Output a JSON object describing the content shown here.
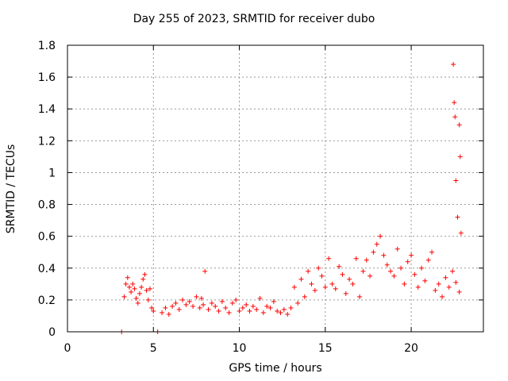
{
  "chart_data": {
    "type": "scatter",
    "title": "Day 255 of 2023, SRMTID for receiver dubo",
    "xlabel": "GPS time / hours",
    "ylabel": "SRMTID / TECUs",
    "xlim": [
      0,
      24.2
    ],
    "ylim": [
      0,
      1.8
    ],
    "xticks": [
      0,
      5,
      10,
      15,
      20
    ],
    "yticks": [
      0,
      0.2,
      0.4,
      0.6,
      0.8,
      1,
      1.2,
      1.4,
      1.6,
      1.8
    ],
    "ytick_labels": [
      "0",
      "0.2",
      "0.4",
      "0.6",
      "0.8",
      "1",
      "1.2",
      "1.4",
      "1.6",
      "1.8"
    ],
    "grid": true,
    "marker": "+",
    "color": "#ff0000",
    "series": [
      {
        "name": "SRMTID",
        "x": [
          3.15,
          5.25,
          3.3,
          3.4,
          3.5,
          3.6,
          3.7,
          3.8,
          3.9,
          4.0,
          4.1,
          4.2,
          4.3,
          4.4,
          4.5,
          4.6,
          4.7,
          4.8,
          4.9,
          5.0,
          5.5,
          5.7,
          5.9,
          6.1,
          6.3,
          6.5,
          6.7,
          6.9,
          7.1,
          7.3,
          7.5,
          7.7,
          7.8,
          7.9,
          8.0,
          8.2,
          8.4,
          8.6,
          8.8,
          9.0,
          9.2,
          9.4,
          9.6,
          9.8,
          10.0,
          10.2,
          10.4,
          10.6,
          10.8,
          11.0,
          11.2,
          11.4,
          11.6,
          11.8,
          12.0,
          12.2,
          12.4,
          12.6,
          12.8,
          13.0,
          13.2,
          13.4,
          13.6,
          13.8,
          14.0,
          14.2,
          14.4,
          14.6,
          14.8,
          15.0,
          15.2,
          15.4,
          15.6,
          15.8,
          16.0,
          16.2,
          16.4,
          16.6,
          16.8,
          17.0,
          17.2,
          17.4,
          17.6,
          17.8,
          18.0,
          18.2,
          18.4,
          18.6,
          18.8,
          19.0,
          19.2,
          19.4,
          19.6,
          19.8,
          20.0,
          20.2,
          20.4,
          20.6,
          20.8,
          21.0,
          21.2,
          21.4,
          21.6,
          21.8,
          22.0,
          22.2,
          22.4,
          22.6,
          22.8,
          22.45,
          22.5,
          22.55,
          22.6,
          22.7,
          22.8,
          22.85,
          22.9
        ],
        "y": [
          0.0,
          0.0,
          0.22,
          0.3,
          0.34,
          0.28,
          0.25,
          0.3,
          0.27,
          0.21,
          0.18,
          0.24,
          0.28,
          0.33,
          0.36,
          0.26,
          0.2,
          0.27,
          0.15,
          0.13,
          0.12,
          0.15,
          0.11,
          0.16,
          0.18,
          0.14,
          0.2,
          0.17,
          0.19,
          0.16,
          0.22,
          0.15,
          0.21,
          0.17,
          0.38,
          0.14,
          0.18,
          0.16,
          0.13,
          0.19,
          0.15,
          0.12,
          0.18,
          0.2,
          0.13,
          0.15,
          0.17,
          0.13,
          0.16,
          0.14,
          0.21,
          0.12,
          0.16,
          0.15,
          0.19,
          0.13,
          0.12,
          0.14,
          0.11,
          0.15,
          0.28,
          0.18,
          0.33,
          0.22,
          0.38,
          0.3,
          0.26,
          0.4,
          0.35,
          0.28,
          0.46,
          0.3,
          0.27,
          0.41,
          0.36,
          0.24,
          0.33,
          0.3,
          0.46,
          0.22,
          0.38,
          0.45,
          0.35,
          0.5,
          0.55,
          0.6,
          0.48,
          0.42,
          0.38,
          0.35,
          0.52,
          0.4,
          0.3,
          0.44,
          0.48,
          0.36,
          0.28,
          0.4,
          0.32,
          0.45,
          0.5,
          0.26,
          0.3,
          0.22,
          0.34,
          0.28,
          0.38,
          0.31,
          0.25,
          1.68,
          1.44,
          1.35,
          0.95,
          0.72,
          1.3,
          1.1,
          0.62
        ]
      }
    ]
  }
}
